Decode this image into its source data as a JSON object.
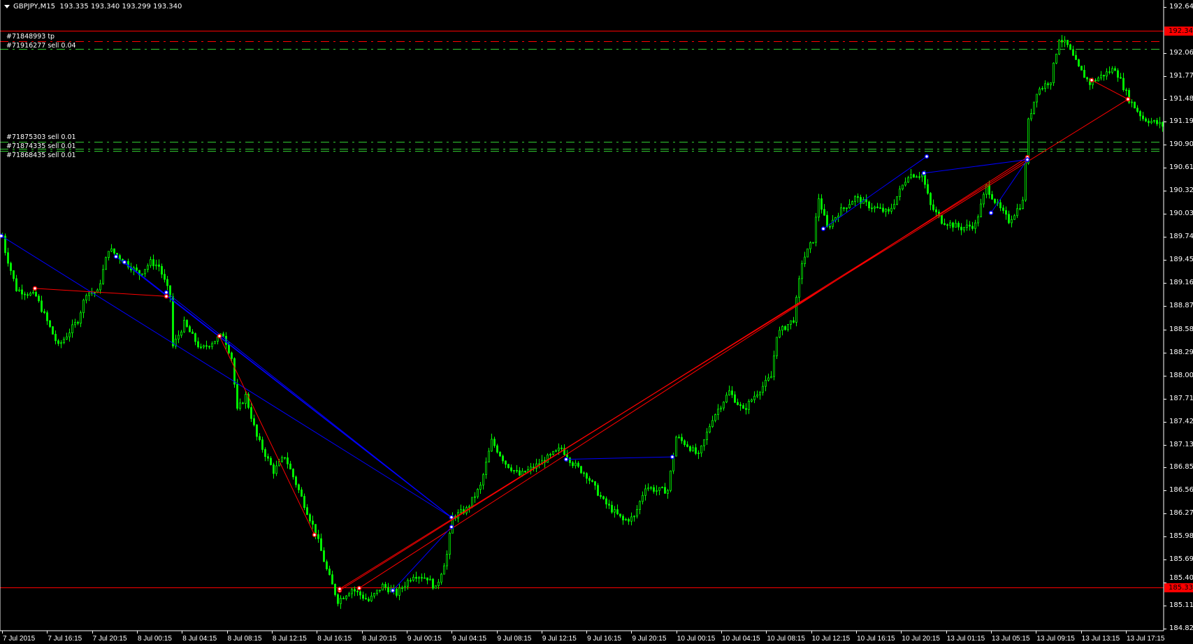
{
  "header": {
    "symbol": "GBPJPY,M15",
    "ohlc": "193.335 193.340 193.299 193.340"
  },
  "order_labels": [
    {
      "text": "#71916277 sell 0.04",
      "price": 192.11
    },
    {
      "text": "#71848993 tp",
      "price": 192.21
    },
    {
      "text": "#71875303 sell 0.01",
      "price": 190.94
    },
    {
      "text": "#71874335 sell 0.01",
      "price": 190.86
    },
    {
      "text": "#71868435 sell 0.01",
      "price": 190.83
    }
  ],
  "levels": [
    {
      "price": 192.341,
      "color": "#ff0000",
      "style": "solid",
      "tag": "192.341"
    },
    {
      "price": 185.335,
      "color": "#ff0000",
      "style": "solid",
      "tag": "185.335"
    },
    {
      "price": 192.21,
      "color": "#ff0000",
      "style": "dashdot"
    },
    {
      "price": 192.11,
      "color": "#32cd32",
      "style": "dashdot"
    },
    {
      "price": 190.94,
      "color": "#32cd32",
      "style": "dashdot"
    },
    {
      "price": 190.86,
      "color": "#32cd32",
      "style": "dashdot"
    },
    {
      "price": 190.83,
      "color": "#32cd32",
      "style": "dashdot"
    }
  ],
  "colors": {
    "background": "#000000",
    "candle": "#00ff00",
    "axis": "#ffffff",
    "buy_line": "#0000ff",
    "sell_line": "#ff0000"
  },
  "chart_data": {
    "type": "candlestick",
    "timeframe": "M15",
    "ylim": [
      184.82,
      192.64
    ],
    "y_tick_labels": [
      "192.640",
      "192.060",
      "191.770",
      "191.480",
      "191.195",
      "190.905",
      "190.615",
      "190.325",
      "190.035",
      "189.745",
      "189.455",
      "189.165",
      "188.875",
      "188.585",
      "188.295",
      "188.005",
      "187.715",
      "187.425",
      "187.135",
      "186.850",
      "186.560",
      "186.270",
      "185.980",
      "185.690",
      "185.400",
      "185.110",
      "184.820"
    ],
    "x_tick_labels": [
      "7 Jul 2015",
      "7 Jul 16:15",
      "7 Jul 20:15",
      "8 Jul 00:15",
      "8 Jul 04:15",
      "8 Jul 08:15",
      "8 Jul 12:15",
      "8 Jul 16:15",
      "8 Jul 20:15",
      "9 Jul 00:15",
      "9 Jul 04:15",
      "9 Jul 08:15",
      "9 Jul 12:15",
      "9 Jul 16:15",
      "9 Jul 20:15",
      "10 Jul 00:15",
      "10 Jul 04:15",
      "10 Jul 08:15",
      "10 Jul 12:15",
      "10 Jul 16:15",
      "10 Jul 20:15",
      "13 Jul 01:15",
      "13 Jul 05:15",
      "13 Jul 09:15",
      "13 Jul 13:15",
      "13 Jul 17:15"
    ],
    "bars_per_tick": 16,
    "approx_close_path": [
      [
        0,
        189.76
      ],
      [
        1,
        189.57
      ],
      [
        5,
        189.09
      ],
      [
        12,
        189.0
      ],
      [
        20,
        188.37
      ],
      [
        27,
        188.7
      ],
      [
        30,
        189.05
      ],
      [
        34,
        189.05
      ],
      [
        38,
        189.6
      ],
      [
        44,
        189.43
      ],
      [
        49,
        189.28
      ],
      [
        53,
        189.43
      ],
      [
        56,
        189.38
      ],
      [
        60,
        189.0
      ],
      [
        61,
        188.37
      ],
      [
        65,
        188.66
      ],
      [
        71,
        188.33
      ],
      [
        79,
        188.52
      ],
      [
        82,
        188.23
      ],
      [
        84,
        187.56
      ],
      [
        87,
        187.75
      ],
      [
        91,
        187.23
      ],
      [
        97,
        186.8
      ],
      [
        101,
        186.99
      ],
      [
        106,
        186.56
      ],
      [
        112,
        186.03
      ],
      [
        116,
        185.56
      ],
      [
        120,
        185.17
      ],
      [
        125,
        185.32
      ],
      [
        131,
        185.17
      ],
      [
        136,
        185.36
      ],
      [
        141,
        185.26
      ],
      [
        147,
        185.5
      ],
      [
        152,
        185.46
      ],
      [
        155,
        185.32
      ],
      [
        159,
        185.75
      ],
      [
        161,
        186.22
      ],
      [
        166,
        186.32
      ],
      [
        171,
        186.61
      ],
      [
        175,
        187.18
      ],
      [
        180,
        186.9
      ],
      [
        185,
        186.75
      ],
      [
        190,
        186.85
      ],
      [
        196,
        186.99
      ],
      [
        200,
        187.09
      ],
      [
        204,
        186.9
      ],
      [
        209,
        186.75
      ],
      [
        215,
        186.42
      ],
      [
        222,
        186.18
      ],
      [
        226,
        186.22
      ],
      [
        230,
        186.61
      ],
      [
        234,
        186.56
      ],
      [
        238,
        186.56
      ],
      [
        241,
        187.23
      ],
      [
        245,
        187.13
      ],
      [
        249,
        186.99
      ],
      [
        254,
        187.47
      ],
      [
        260,
        187.8
      ],
      [
        265,
        187.56
      ],
      [
        269,
        187.75
      ],
      [
        275,
        187.99
      ],
      [
        277,
        188.52
      ],
      [
        283,
        188.71
      ],
      [
        286,
        189.43
      ],
      [
        290,
        189.71
      ],
      [
        292,
        190.24
      ],
      [
        295,
        189.86
      ],
      [
        299,
        190.05
      ],
      [
        305,
        190.24
      ],
      [
        310,
        190.14
      ],
      [
        317,
        190.05
      ],
      [
        324,
        190.53
      ],
      [
        329,
        190.53
      ],
      [
        332,
        190.14
      ],
      [
        336,
        189.95
      ],
      [
        343,
        189.86
      ],
      [
        348,
        189.9
      ],
      [
        352,
        190.38
      ],
      [
        356,
        190.14
      ],
      [
        360,
        189.95
      ],
      [
        365,
        190.19
      ],
      [
        367,
        191.2
      ],
      [
        370,
        191.58
      ],
      [
        375,
        191.72
      ],
      [
        378,
        192.25
      ],
      [
        381,
        192.15
      ],
      [
        385,
        191.87
      ],
      [
        389,
        191.68
      ],
      [
        393,
        191.77
      ],
      [
        398,
        191.87
      ],
      [
        403,
        191.48
      ],
      [
        408,
        191.24
      ],
      [
        415,
        191.15
      ]
    ],
    "trade_lines": [
      {
        "from": [
          0,
          189.76
        ],
        "to": [
          161,
          186.22
        ],
        "color": "#0000ff"
      },
      {
        "from": [
          41,
          189.5
        ],
        "to": [
          161,
          186.22
        ],
        "color": "#0000ff"
      },
      {
        "from": [
          44,
          189.43
        ],
        "to": [
          161,
          186.22
        ],
        "color": "#0000ff"
      },
      {
        "from": [
          59,
          189.05
        ],
        "to": [
          161,
          186.22
        ],
        "color": "#0000ff"
      },
      {
        "from": [
          12,
          189.1
        ],
        "to": [
          59,
          189.0
        ],
        "color": "#ff0000"
      },
      {
        "from": [
          121,
          185.3
        ],
        "to": [
          367,
          190.72
        ],
        "color": "#ff0000"
      },
      {
        "from": [
          128,
          185.33
        ],
        "to": [
          367,
          190.75
        ],
        "color": "#ff0000"
      },
      {
        "from": [
          121,
          185.32
        ],
        "to": [
          403,
          191.48
        ],
        "color": "#ff0000"
      },
      {
        "from": [
          140,
          185.3
        ],
        "to": [
          161,
          186.1
        ],
        "color": "#0000ff"
      },
      {
        "from": [
          202,
          186.95
        ],
        "to": [
          240,
          186.98
        ],
        "color": "#0000ff"
      },
      {
        "from": [
          294,
          189.85
        ],
        "to": [
          331,
          190.76
        ],
        "color": "#0000ff"
      },
      {
        "from": [
          330,
          190.55
        ],
        "to": [
          367,
          190.72
        ],
        "color": "#0000ff"
      },
      {
        "from": [
          354,
          190.05
        ],
        "to": [
          367,
          190.72
        ],
        "color": "#0000ff"
      },
      {
        "from": [
          390,
          191.72
        ],
        "to": [
          403,
          191.48
        ],
        "color": "#ff0000"
      },
      {
        "from": [
          78,
          188.5
        ],
        "to": [
          112,
          186.0
        ],
        "color": "#ff0000"
      }
    ]
  }
}
